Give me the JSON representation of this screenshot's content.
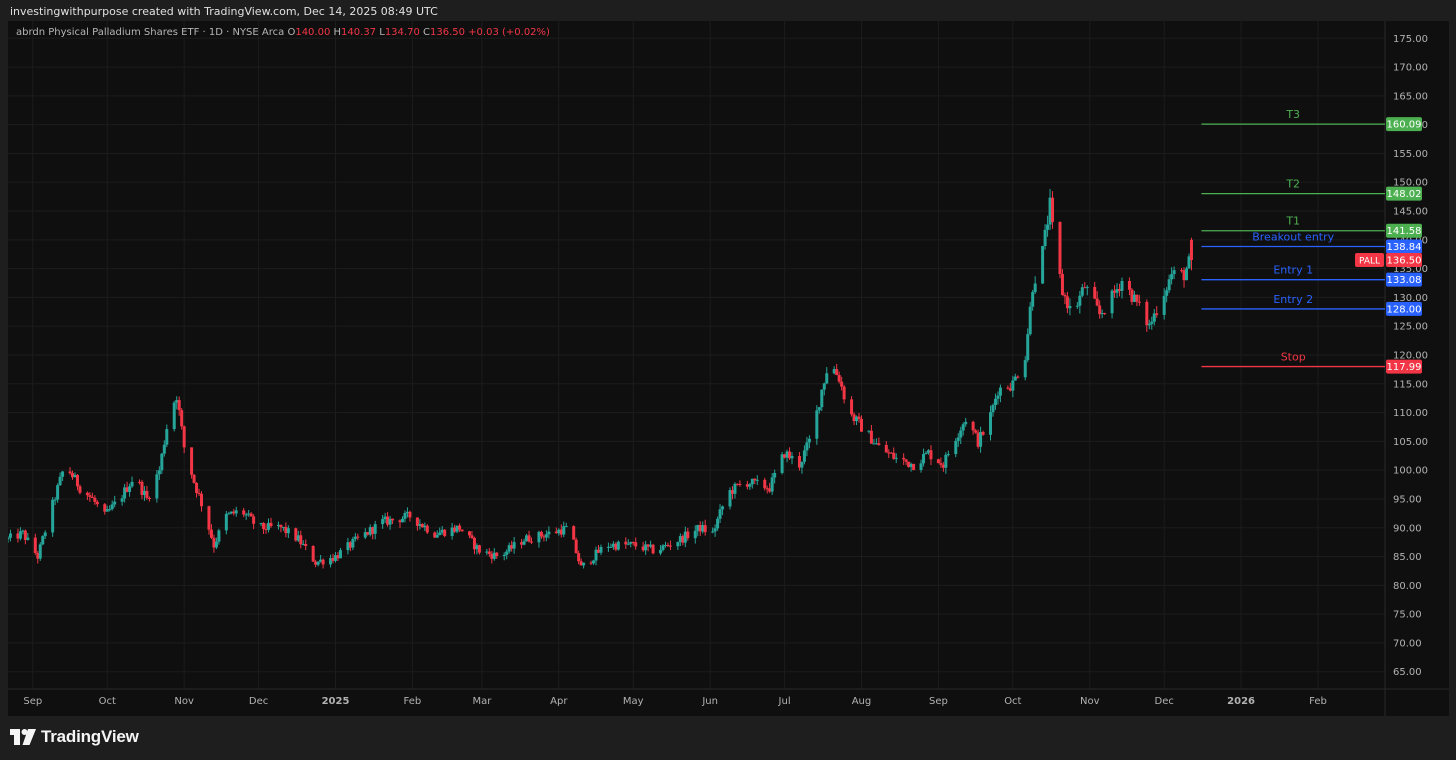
{
  "credit": "investingwithpurpose created with TradingView.com, Dec 14, 2025 08:49 UTC",
  "legend": {
    "name": "abrdn Physical Palladium Shares ETF · 1D · NYSE Arca",
    "o_label": "O",
    "o": "140.00",
    "h_label": "H",
    "h": "140.37",
    "l_label": "L",
    "l": "134.70",
    "c_label": "C",
    "c": "136.50",
    "change": "+0.03 (+0.02%)"
  },
  "brand": "TradingView",
  "colors": {
    "up": "#26a69a",
    "down": "#f23645",
    "target": "#4caf50",
    "entry": "#2962ff",
    "stop": "#f23645",
    "background": "#0f0f0f"
  },
  "chart_data": {
    "type": "candlestick",
    "ylim": [
      62,
      178
    ],
    "y_ticks": [
      "175.00",
      "170.00",
      "165.00",
      "160.00",
      "155.00",
      "150.00",
      "145.00",
      "140.00",
      "135.00",
      "130.00",
      "125.00",
      "120.00",
      "115.00",
      "110.00",
      "105.00",
      "100.00",
      "95.00",
      "90.00",
      "85.00",
      "80.00",
      "75.00",
      "70.00",
      "65.00"
    ],
    "x_ticks": [
      {
        "label": "Sep",
        "date": "2024-09-01"
      },
      {
        "label": "Oct",
        "date": "2024-10-01"
      },
      {
        "label": "Nov",
        "date": "2024-11-01"
      },
      {
        "label": "Dec",
        "date": "2024-12-01"
      },
      {
        "label": "2025",
        "date": "2025-01-01"
      },
      {
        "label": "Feb",
        "date": "2025-02-01"
      },
      {
        "label": "Mar",
        "date": "2025-03-01"
      },
      {
        "label": "Apr",
        "date": "2025-04-01"
      },
      {
        "label": "May",
        "date": "2025-05-01"
      },
      {
        "label": "Jun",
        "date": "2025-06-01"
      },
      {
        "label": "Jul",
        "date": "2025-07-01"
      },
      {
        "label": "Aug",
        "date": "2025-08-01"
      },
      {
        "label": "Sep",
        "date": "2025-09-01"
      },
      {
        "label": "Oct",
        "date": "2025-10-01"
      },
      {
        "label": "Nov",
        "date": "2025-11-01"
      },
      {
        "label": "Dec",
        "date": "2025-12-01"
      },
      {
        "label": "2026",
        "date": "2026-01-01"
      },
      {
        "label": "Feb",
        "date": "2026-02-01"
      }
    ],
    "x_range": [
      "2024-08-22",
      "2026-02-28"
    ],
    "series_anchors": [
      [
        "2024-08-22",
        88
      ],
      [
        "2024-08-28",
        89
      ],
      [
        "2024-09-03",
        85
      ],
      [
        "2024-09-09",
        94
      ],
      [
        "2024-09-14",
        101
      ],
      [
        "2024-09-20",
        97
      ],
      [
        "2024-09-25",
        95
      ],
      [
        "2024-09-30",
        92
      ],
      [
        "2024-10-06",
        95
      ],
      [
        "2024-10-12",
        99
      ],
      [
        "2024-10-17",
        95
      ],
      [
        "2024-10-22",
        100
      ],
      [
        "2024-10-26",
        110
      ],
      [
        "2024-10-29",
        113
      ],
      [
        "2024-11-01",
        104
      ],
      [
        "2024-11-05",
        98
      ],
      [
        "2024-11-09",
        93
      ],
      [
        "2024-11-13",
        87
      ],
      [
        "2024-11-18",
        92
      ],
      [
        "2024-11-24",
        93
      ],
      [
        "2024-12-01",
        90
      ],
      [
        "2024-12-10",
        90
      ],
      [
        "2024-12-17",
        88
      ],
      [
        "2024-12-24",
        84
      ],
      [
        "2025-01-01",
        85
      ],
      [
        "2025-01-10",
        88
      ],
      [
        "2025-01-20",
        91
      ],
      [
        "2025-01-31",
        92
      ],
      [
        "2025-02-10",
        89
      ],
      [
        "2025-02-20",
        90
      ],
      [
        "2025-02-28",
        86
      ],
      [
        "2025-03-08",
        85
      ],
      [
        "2025-03-18",
        88
      ],
      [
        "2025-03-28",
        89
      ],
      [
        "2025-04-05",
        90
      ],
      [
        "2025-04-10",
        83
      ],
      [
        "2025-04-20",
        87
      ],
      [
        "2025-05-01",
        87
      ],
      [
        "2025-05-10",
        86
      ],
      [
        "2025-05-20",
        88
      ],
      [
        "2025-05-28",
        90
      ],
      [
        "2025-06-02",
        89
      ],
      [
        "2025-06-08",
        96
      ],
      [
        "2025-06-15",
        98
      ],
      [
        "2025-06-25",
        97
      ],
      [
        "2025-07-01",
        103
      ],
      [
        "2025-07-07",
        101
      ],
      [
        "2025-07-12",
        106
      ],
      [
        "2025-07-16",
        114
      ],
      [
        "2025-07-19",
        119
      ],
      [
        "2025-07-23",
        116
      ],
      [
        "2025-07-27",
        110
      ],
      [
        "2025-08-02",
        107
      ],
      [
        "2025-08-08",
        104
      ],
      [
        "2025-08-15",
        102
      ],
      [
        "2025-08-22",
        101
      ],
      [
        "2025-08-28",
        103
      ],
      [
        "2025-09-03",
        101
      ],
      [
        "2025-09-07",
        105
      ],
      [
        "2025-09-12",
        109
      ],
      [
        "2025-09-17",
        105
      ],
      [
        "2025-09-21",
        108
      ],
      [
        "2025-09-25",
        114
      ],
      [
        "2025-10-01",
        115
      ],
      [
        "2025-10-06",
        120
      ],
      [
        "2025-10-09",
        132
      ],
      [
        "2025-10-13",
        138
      ],
      [
        "2025-10-16",
        146
      ],
      [
        "2025-10-18",
        138
      ],
      [
        "2025-10-21",
        131
      ],
      [
        "2025-10-25",
        127
      ],
      [
        "2025-10-30",
        132
      ],
      [
        "2025-11-05",
        127
      ],
      [
        "2025-11-10",
        130
      ],
      [
        "2025-11-14",
        133
      ],
      [
        "2025-11-20",
        129
      ],
      [
        "2025-11-25",
        125
      ],
      [
        "2025-11-30",
        130
      ],
      [
        "2025-12-04",
        134
      ],
      [
        "2025-12-09",
        134
      ],
      [
        "2025-12-12",
        137
      ]
    ],
    "last_candle": {
      "o": 140.0,
      "h": 140.37,
      "l": 134.7,
      "c": 136.5
    },
    "levels": [
      {
        "label": "T3",
        "value": 160.09,
        "badge": "160.09",
        "kind": "target"
      },
      {
        "label": "T2",
        "value": 148.02,
        "badge": "148.02",
        "kind": "target"
      },
      {
        "label": "T1",
        "value": 141.58,
        "badge": "141.58",
        "kind": "target"
      },
      {
        "label": "Breakout entry",
        "value": 138.84,
        "badge": "138.84",
        "kind": "entry"
      },
      {
        "label": "Entry 1",
        "value": 133.08,
        "badge": "133.08",
        "kind": "entry"
      },
      {
        "label": "Entry 2",
        "value": 128.0,
        "badge": "128.00",
        "kind": "entry"
      },
      {
        "label": "Stop",
        "value": 117.99,
        "badge": "117.99",
        "kind": "stop"
      }
    ],
    "current": {
      "symbol": "PALL",
      "price": 136.5,
      "badge": "136.50"
    },
    "levels_start": "2025-12-16"
  }
}
